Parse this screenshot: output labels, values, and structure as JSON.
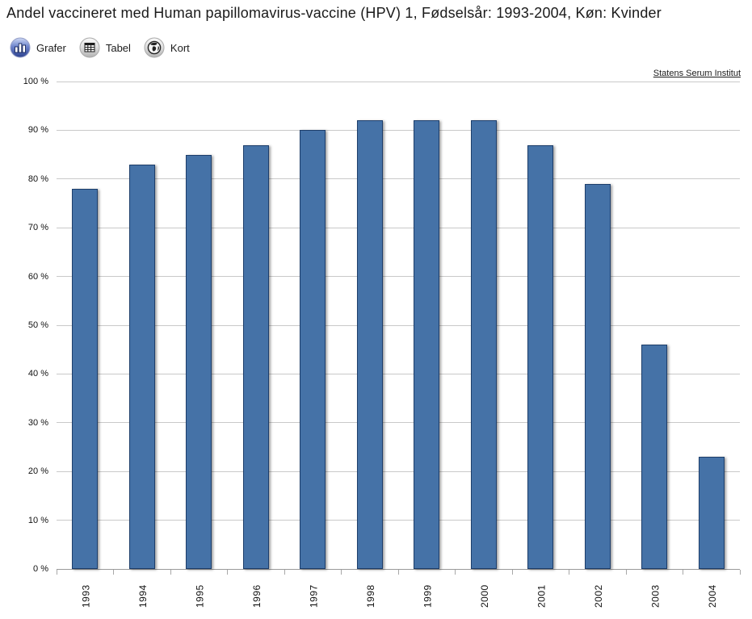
{
  "header": {
    "title": "Andel vaccineret med Human papillomavirus-vaccine (HPV) 1, Fødselsår: 1993-2004, Køn: Kvinder"
  },
  "toolbar": {
    "tabs": [
      {
        "label": "Grafer",
        "icon": "bar-chart-icon",
        "active": true
      },
      {
        "label": "Tabel",
        "icon": "table-icon",
        "active": false
      },
      {
        "label": "Kort",
        "icon": "globe-icon",
        "active": false
      }
    ]
  },
  "credits": {
    "label": "Statens Serum Institut"
  },
  "chart_data": {
    "type": "bar",
    "title": "Andel vaccineret med Human papillomavirus-vaccine (HPV) 1, Fødselsår: 1993-2004, Køn: Kvinder",
    "categories": [
      "1993",
      "1994",
      "1995",
      "1996",
      "1997",
      "1998",
      "1999",
      "2000",
      "2001",
      "2002",
      "2003",
      "2004"
    ],
    "values": [
      78,
      83,
      85,
      87,
      90,
      92,
      92,
      92,
      87,
      79,
      46,
      23
    ],
    "xlabel": "",
    "ylabel": "",
    "ylim": [
      0,
      100
    ],
    "y_ticks": [
      0,
      10,
      20,
      30,
      40,
      50,
      60,
      70,
      80,
      90,
      100
    ],
    "y_tick_suffix": " %",
    "grid": true,
    "legend": "none",
    "x_label_rotation": -90,
    "bar_color": "#4572A7",
    "bar_border_color": "#1d3e6b",
    "gridline_color": "#c9c9c9",
    "axis_line_color": "#9a9a9a"
  }
}
